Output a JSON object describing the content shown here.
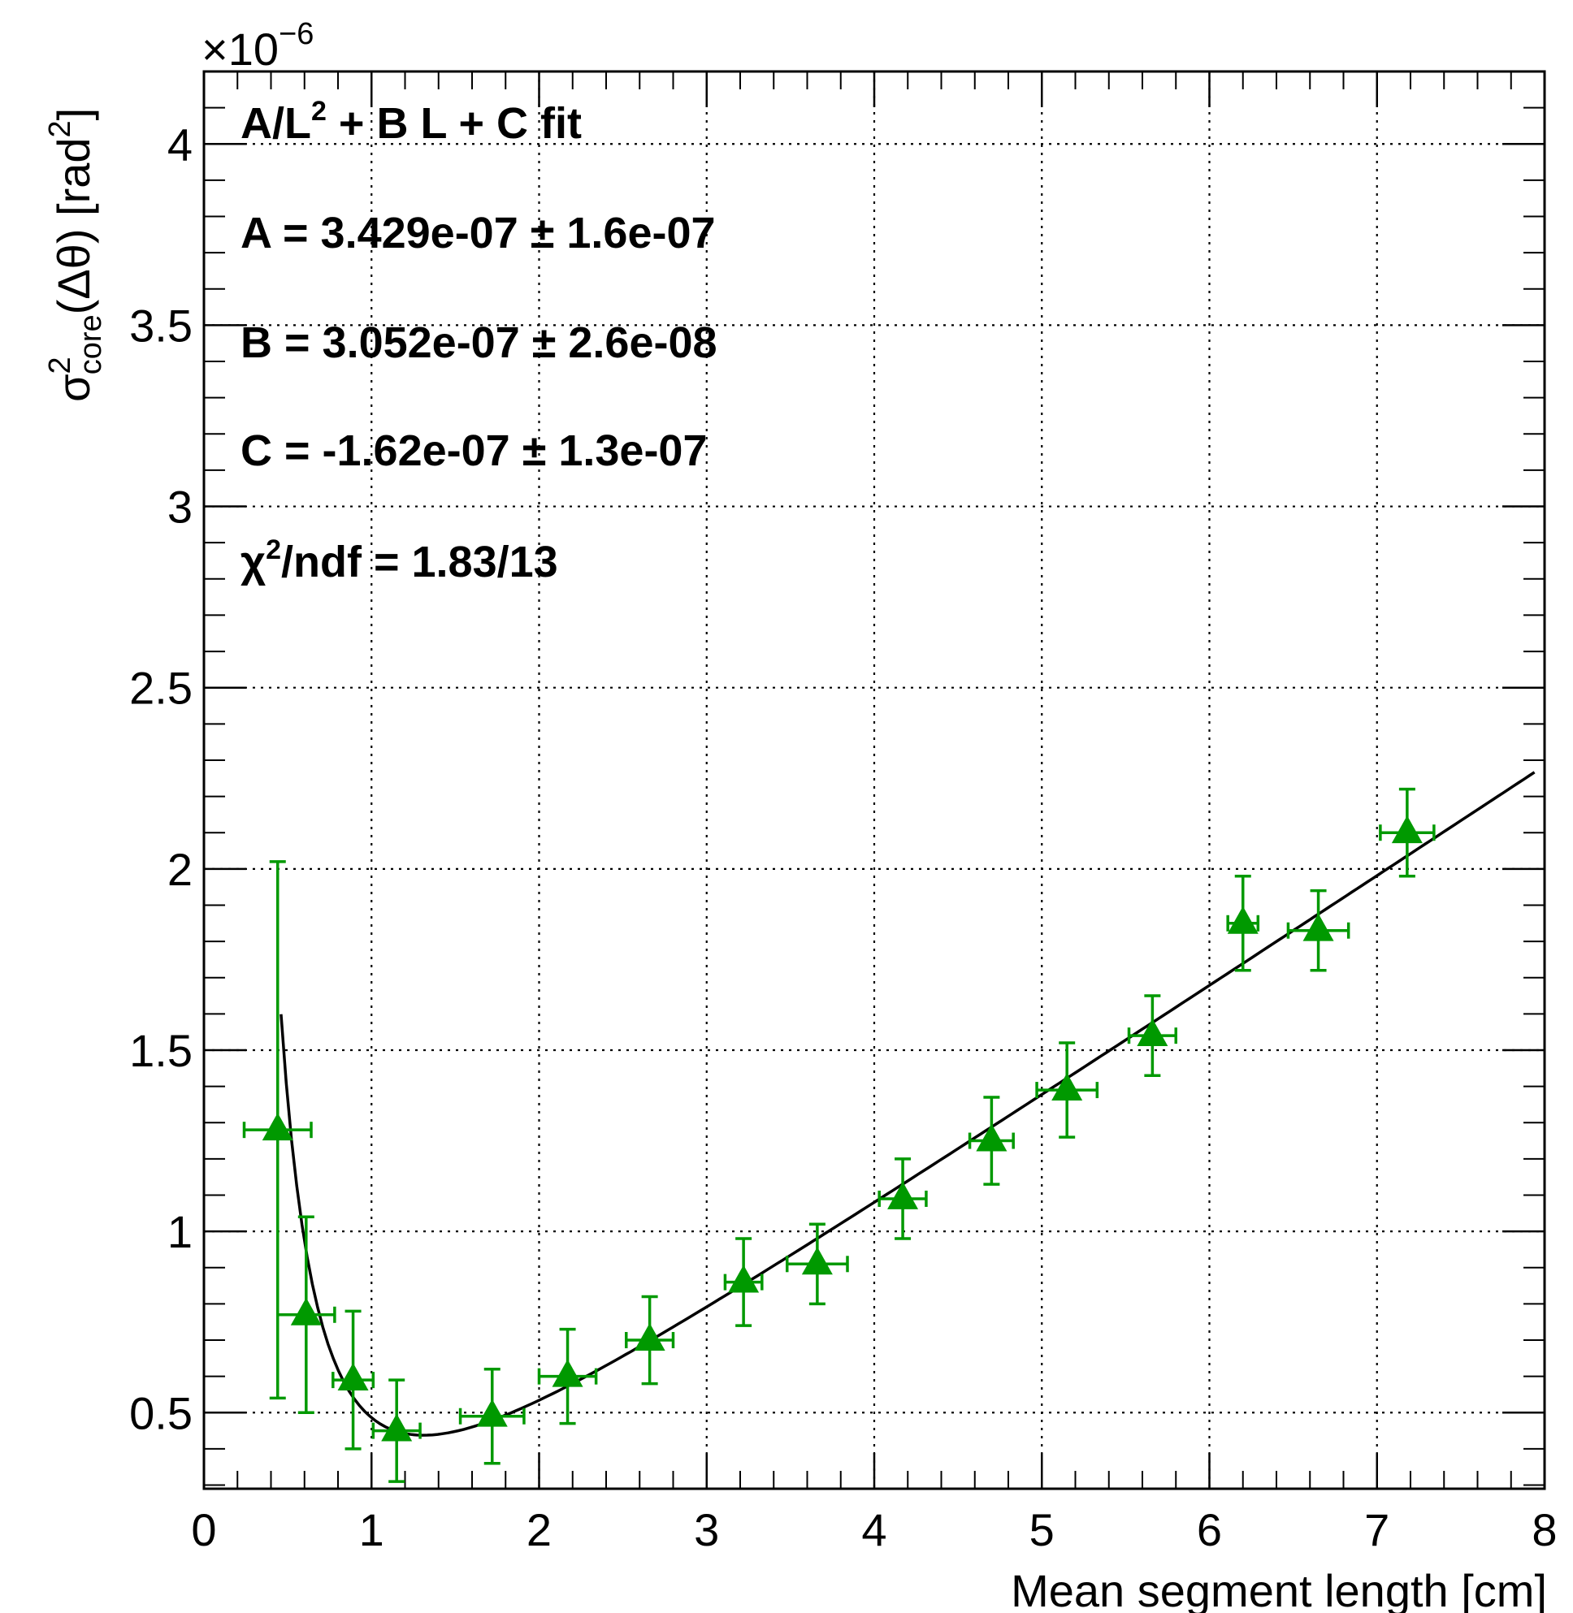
{
  "chart_data": {
    "type": "scatter",
    "title": "",
    "xlabel": "Mean segment length [cm]",
    "ylabel": {
      "symbol": "σ",
      "superscript": "2",
      "subscript": "core",
      "rest": "(Δθ) [rad",
      "unit_superscript": "2",
      "close": "]"
    },
    "y_multiplier": {
      "base": "×10",
      "exponent": "−6"
    },
    "xlim": [
      0,
      8
    ],
    "ylim": [
      0.29,
      4.2
    ],
    "x_ticks": [
      "0",
      "1",
      "2",
      "3",
      "4",
      "5",
      "6",
      "7",
      "8"
    ],
    "y_ticks": [
      "0.5",
      "1",
      "1.5",
      "2",
      "2.5",
      "3",
      "3.5",
      "4"
    ],
    "grid": true,
    "series": [
      {
        "marker": "triangle",
        "color": "#009900",
        "points": [
          {
            "x": 0.44,
            "y": 1.28,
            "xerr": 0.2,
            "yerr_low": 0.74,
            "yerr_high": 0.74
          },
          {
            "x": 0.61,
            "y": 0.77,
            "xerr": 0.17,
            "yerr_low": 0.27,
            "yerr_high": 0.27
          },
          {
            "x": 0.89,
            "y": 0.59,
            "xerr": 0.12,
            "yerr_low": 0.19,
            "yerr_high": 0.19
          },
          {
            "x": 1.15,
            "y": 0.45,
            "xerr": 0.14,
            "yerr_low": 0.14,
            "yerr_high": 0.14
          },
          {
            "x": 1.72,
            "y": 0.49,
            "xerr": 0.19,
            "yerr_low": 0.13,
            "yerr_high": 0.13
          },
          {
            "x": 2.17,
            "y": 0.6,
            "xerr": 0.17,
            "yerr_low": 0.13,
            "yerr_high": 0.13
          },
          {
            "x": 2.66,
            "y": 0.7,
            "xerr": 0.14,
            "yerr_low": 0.12,
            "yerr_high": 0.12
          },
          {
            "x": 3.22,
            "y": 0.86,
            "xerr": 0.11,
            "yerr_low": 0.12,
            "yerr_high": 0.12
          },
          {
            "x": 3.66,
            "y": 0.91,
            "xerr": 0.18,
            "yerr_low": 0.11,
            "yerr_high": 0.11
          },
          {
            "x": 4.17,
            "y": 1.09,
            "xerr": 0.14,
            "yerr_low": 0.11,
            "yerr_high": 0.11
          },
          {
            "x": 4.7,
            "y": 1.25,
            "xerr": 0.13,
            "yerr_low": 0.12,
            "yerr_high": 0.12
          },
          {
            "x": 5.15,
            "y": 1.39,
            "xerr": 0.18,
            "yerr_low": 0.13,
            "yerr_high": 0.13
          },
          {
            "x": 5.66,
            "y": 1.54,
            "xerr": 0.14,
            "yerr_low": 0.11,
            "yerr_high": 0.11
          },
          {
            "x": 6.2,
            "y": 1.85,
            "xerr": 0.09,
            "yerr_low": 0.13,
            "yerr_high": 0.13
          },
          {
            "x": 6.65,
            "y": 1.83,
            "xerr": 0.18,
            "yerr_low": 0.11,
            "yerr_high": 0.11
          },
          {
            "x": 7.18,
            "y": 2.1,
            "xerr": 0.16,
            "yerr_low": 0.12,
            "yerr_high": 0.12
          }
        ]
      }
    ],
    "fit": {
      "A": 0.3429,
      "B": 0.3052,
      "C": -0.162,
      "x_range": [
        0.46,
        7.94
      ],
      "color": "#000000"
    },
    "annotations": [
      {
        "text": "A/L",
        "sup": "2",
        "tail": " + B L + C fit"
      },
      {
        "text": "A = 3.429e-07 ± 1.6e-07"
      },
      {
        "text": "B = 3.052e-07 ± 2.6e-08"
      },
      {
        "text": "C = -1.62e-07 ± 1.3e-07"
      },
      {
        "text": "χ",
        "sup": "2",
        "tail": "/ndf = 1.83/13"
      }
    ]
  }
}
